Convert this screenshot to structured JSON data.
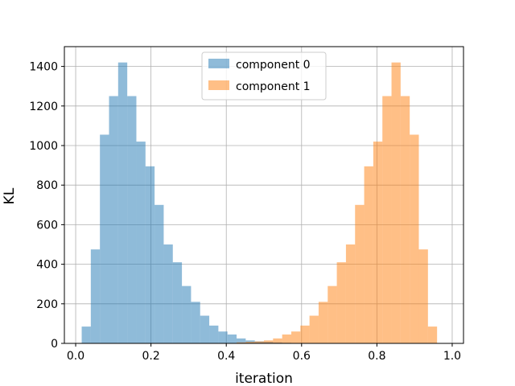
{
  "chart_data": {
    "type": "histogram",
    "xlabel": "iteration",
    "ylabel": "KL",
    "xlim": [
      -0.03,
      1.03
    ],
    "ylim": [
      0,
      1500
    ],
    "xticks": [
      0.0,
      0.2,
      0.4,
      0.6,
      0.8,
      1.0
    ],
    "xtick_labels": [
      "0.0",
      "0.2",
      "0.4",
      "0.6",
      "0.8",
      "1.0"
    ],
    "yticks": [
      0,
      200,
      400,
      600,
      800,
      1000,
      1200,
      1400
    ],
    "ytick_labels": [
      "0",
      "200",
      "400",
      "600",
      "800",
      "1000",
      "1200",
      "1400"
    ],
    "grid": true,
    "legend_position": "top-center",
    "series": [
      {
        "name": "component 0",
        "color": "#1f77b4",
        "alpha": 0.5,
        "bins": [
          0.016,
          0.0402,
          0.0644,
          0.0886,
          0.1128,
          0.137,
          0.1612,
          0.1854,
          0.2096,
          0.2338,
          0.258,
          0.2822,
          0.3064,
          0.3306,
          0.3548,
          0.379,
          0.4032,
          0.4274,
          0.4516,
          0.4758,
          0.5,
          0.5242,
          0.5484,
          0.5726,
          0.5968,
          0.621,
          0.6452,
          0.6694,
          0.6936,
          0.7178,
          0.742,
          0.7662,
          0.7904,
          0.8146,
          0.8388,
          0.863,
          0.8872,
          0.9114,
          0.9356,
          0.9598,
          0.984
        ],
        "counts": [
          85,
          475,
          1055,
          1250,
          1420,
          1250,
          1020,
          895,
          700,
          500,
          410,
          290,
          210,
          140,
          90,
          60,
          45,
          25,
          15,
          10,
          8,
          5,
          3,
          2,
          1,
          1,
          0,
          0,
          0,
          0,
          0,
          0,
          0,
          0,
          0,
          0,
          0,
          0,
          0,
          0
        ]
      },
      {
        "name": "component 1",
        "color": "#ff7f0e",
        "alpha": 0.5,
        "bins": [
          0.016,
          0.0402,
          0.0644,
          0.0886,
          0.1128,
          0.137,
          0.1612,
          0.1854,
          0.2096,
          0.2338,
          0.258,
          0.2822,
          0.3064,
          0.3306,
          0.3548,
          0.379,
          0.4032,
          0.4274,
          0.4516,
          0.4758,
          0.5,
          0.5242,
          0.5484,
          0.5726,
          0.5968,
          0.621,
          0.6452,
          0.6694,
          0.6936,
          0.7178,
          0.742,
          0.7662,
          0.7904,
          0.8146,
          0.8388,
          0.863,
          0.8872,
          0.9114,
          0.9356,
          0.9598,
          0.984
        ],
        "counts": [
          0,
          0,
          0,
          0,
          0,
          0,
          0,
          0,
          0,
          0,
          0,
          0,
          0,
          0,
          0,
          1,
          2,
          5,
          8,
          10,
          15,
          25,
          45,
          60,
          90,
          140,
          210,
          290,
          410,
          500,
          700,
          895,
          1020,
          1250,
          1420,
          1250,
          1055,
          475,
          85,
          0
        ]
      }
    ]
  }
}
